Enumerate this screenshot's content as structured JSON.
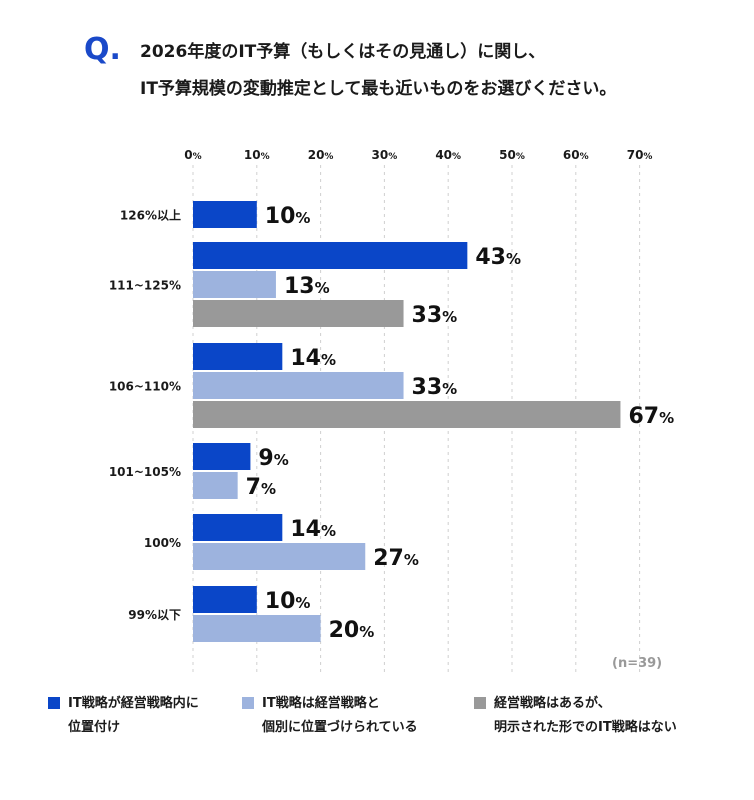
{
  "question": {
    "mark": "Q.",
    "line1": "2026年度のIT予算（もしくはその見通し）に関し、",
    "line2": "IT予算規模の変動推定として最も近いものをお選びください。"
  },
  "colors": {
    "accent": "#1a49c9",
    "series": [
      "#0a46c8",
      "#9db3de",
      "#999999"
    ],
    "grid": "#d0d0d0"
  },
  "note": "(n=39)",
  "legend": [
    {
      "line1": "IT戦略が経営戦略内に",
      "line2": "位置付け"
    },
    {
      "line1": "IT戦略は経営戦略と",
      "line2": "個別に位置づけられている"
    },
    {
      "line1": "経営戦略はあるが、",
      "line2": "明示された形でのIT戦略はない"
    }
  ],
  "chart_data": {
    "type": "bar",
    "orientation": "horizontal",
    "xlim": [
      0,
      70
    ],
    "xticks": [
      "0%",
      "10%",
      "20%",
      "30%",
      "40%",
      "50%",
      "60%",
      "70%"
    ],
    "categories": [
      "126%以上",
      "111~125%",
      "106~110%",
      "101~105%",
      "100%",
      "99%以下"
    ],
    "series": [
      {
        "name": "IT戦略が経営戦略内に位置付け",
        "values": [
          10,
          43,
          14,
          9,
          14,
          10
        ]
      },
      {
        "name": "IT戦略は経営戦略と個別に位置づけられている",
        "values": [
          null,
          13,
          33,
          7,
          27,
          20
        ]
      },
      {
        "name": "経営戦略はあるが、明示された形でのIT戦略はない",
        "values": [
          null,
          33,
          67,
          null,
          null,
          null
        ]
      }
    ],
    "value_suffix": "%",
    "grid": true,
    "legend_position": "bottom"
  }
}
